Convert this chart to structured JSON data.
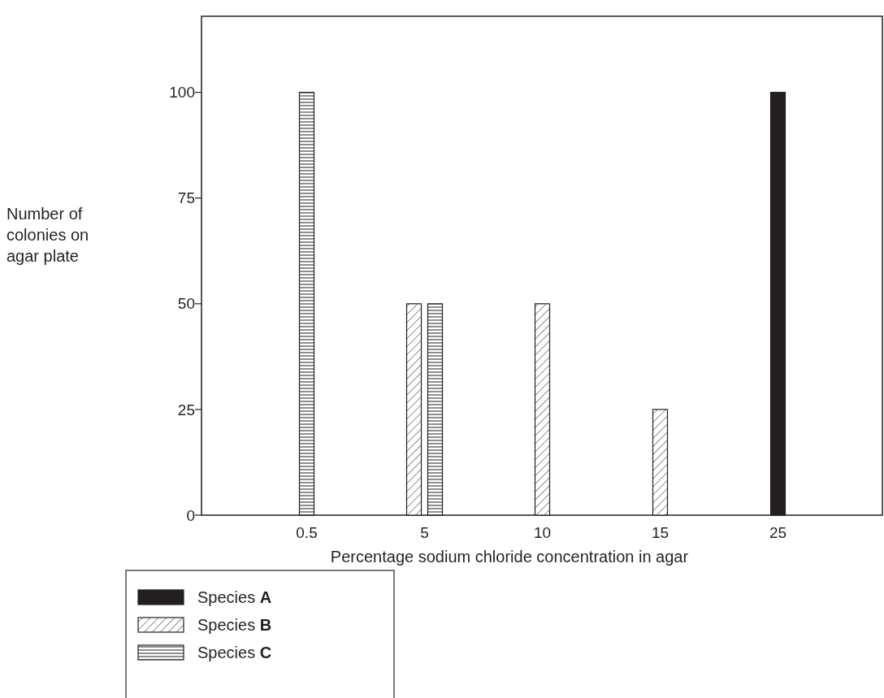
{
  "chart_data": {
    "type": "bar",
    "xlabel": "Percentage sodium chloride concentration in agar",
    "ylabel": "Number of colonies on agar plate",
    "categories": [
      "0.5",
      "5",
      "10",
      "15",
      "25"
    ],
    "series": [
      {
        "name": "Species A",
        "color": "#231f20",
        "values": [
          null,
          null,
          null,
          null,
          100
        ]
      },
      {
        "name": "Species B",
        "color": "#231f20",
        "values": [
          null,
          50,
          50,
          25,
          null
        ]
      },
      {
        "name": "Species C",
        "color": "#231f20",
        "values": [
          100,
          50,
          null,
          null,
          null
        ]
      }
    ],
    "ylim": [
      0,
      118
    ],
    "yticks": [
      0,
      25,
      50,
      75,
      100
    ],
    "grid": false,
    "legend": "bottom left"
  }
}
